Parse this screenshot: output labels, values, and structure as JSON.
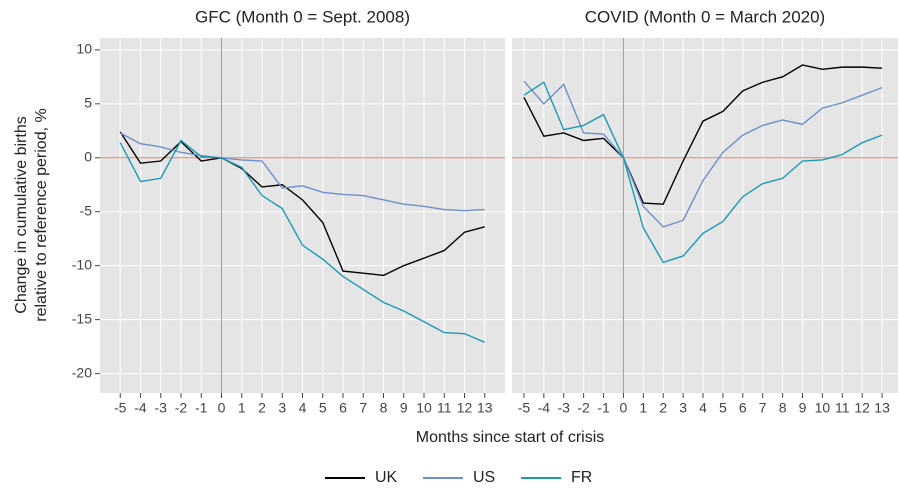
{
  "chart_data": [
    {
      "type": "line",
      "title": "GFC (Month 0 = Sept. 2008)",
      "ylabel": [
        "Change in cumulative births",
        "relative to reference period, %"
      ],
      "xlabel": "Months since start of crisis",
      "x": [
        -5,
        -4,
        -3,
        -2,
        -1,
        0,
        1,
        2,
        3,
        4,
        5,
        6,
        7,
        8,
        9,
        10,
        11,
        12,
        13
      ],
      "xlim": [
        -6,
        14
      ],
      "xticks": [
        -5,
        -4,
        -3,
        -2,
        -1,
        0,
        1,
        2,
        3,
        4,
        5,
        6,
        7,
        8,
        9,
        10,
        11,
        12,
        13
      ],
      "ylim": [
        -21.8,
        11.1
      ],
      "yticks": [
        -20,
        -15,
        -10,
        -5,
        0,
        5,
        10
      ],
      "grid": true,
      "series": [
        {
          "name": "UK",
          "color": "#000000",
          "values": [
            2.4,
            -0.5,
            -0.3,
            1.5,
            -0.3,
            0,
            -1,
            -2.7,
            -2.5,
            -3.9,
            -6,
            -10.5,
            -10.7,
            -10.9,
            -10,
            -9.3,
            -8.6,
            -6.9,
            -6.4
          ]
        },
        {
          "name": "US",
          "color": "#6d8fcc",
          "values": [
            2.3,
            1.3,
            1.0,
            0.5,
            0.2,
            0,
            -0.2,
            -0.3,
            -2.8,
            -2.6,
            -3.2,
            -3.4,
            -3.5,
            -3.9,
            -4.3,
            -4.5,
            -4.8,
            -4.9,
            -4.8
          ]
        },
        {
          "name": "FR",
          "color": "#1a9bb5",
          "values": [
            1.4,
            -2.2,
            -1.9,
            1.6,
            0.1,
            0,
            -0.9,
            -3.5,
            -4.7,
            -8.1,
            -9.4,
            -11,
            -12.2,
            -13.4,
            -14.2,
            -15.2,
            -16.2,
            -16.3,
            -17.1
          ]
        }
      ]
    },
    {
      "type": "line",
      "title": "COVID (Month 0 = March 2020)",
      "x": [
        -5,
        -4,
        -3,
        -2,
        -1,
        0,
        1,
        2,
        3,
        4,
        5,
        6,
        7,
        8,
        9,
        10,
        11,
        12,
        13
      ],
      "xlim": [
        -5.6,
        13.8
      ],
      "xticks": [
        -5,
        -4,
        -3,
        -2,
        -1,
        0,
        1,
        2,
        3,
        4,
        5,
        6,
        7,
        8,
        9,
        10,
        11,
        12,
        13
      ],
      "ylim": [
        -21.8,
        11.1
      ],
      "yticks": [
        -20,
        -15,
        -10,
        -5,
        0,
        5,
        10
      ],
      "grid": true,
      "series": [
        {
          "color": "#000000",
          "values": [
            5.6,
            2.0,
            2.3,
            1.6,
            1.8,
            0,
            -4.2,
            -4.3,
            -0.3,
            3.4,
            4.3,
            6.2,
            7,
            7.5,
            8.6,
            8.2,
            8.4,
            8.4,
            8.3
          ]
        },
        {
          "color": "#6d8fcc",
          "values": [
            7.1,
            5.0,
            6.8,
            2.3,
            2.2,
            0,
            -4.5,
            -6.4,
            -5.8,
            -2.1,
            0.5,
            2.1,
            3.0,
            3.5,
            3.1,
            4.6,
            5.1,
            5.8,
            6.5
          ]
        },
        {
          "color": "#1a9bb5",
          "values": [
            5.8,
            7.0,
            2.6,
            3.0,
            4.0,
            0,
            -6.5,
            -9.7,
            -9.1,
            -7.0,
            -5.9,
            -3.6,
            -2.4,
            -1.9,
            -0.3,
            -0.2,
            0.3,
            1.4,
            2.1
          ]
        }
      ]
    }
  ]
}
